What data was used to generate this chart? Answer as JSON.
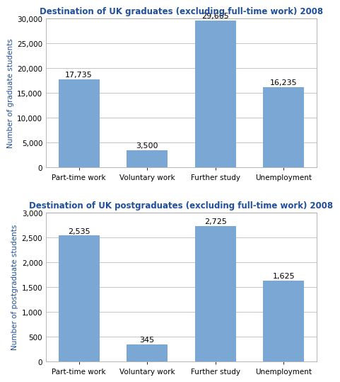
{
  "chart1": {
    "title": "Destination of UK graduates (excluding full-time work) 2008",
    "categories": [
      "Part-time work",
      "Voluntary work",
      "Further study",
      "Unemployment"
    ],
    "values": [
      17735,
      3500,
      29665,
      16235
    ],
    "labels": [
      "17,735",
      "3,500",
      "29,665",
      "16,235"
    ],
    "ylabel": "Number of graduate students",
    "ylim": [
      0,
      30000
    ],
    "yticks": [
      0,
      5000,
      10000,
      15000,
      20000,
      25000,
      30000
    ],
    "ytick_labels": [
      "0",
      "5,000",
      "10,000",
      "15,000",
      "20,000",
      "25,000",
      "30,000"
    ]
  },
  "chart2": {
    "title": "Destination of UK postgraduates (excluding full-time work) 2008",
    "categories": [
      "Part-time work",
      "Voluntary work",
      "Further study",
      "Unemployment"
    ],
    "values": [
      2535,
      345,
      2725,
      1625
    ],
    "labels": [
      "2,535",
      "345",
      "2,725",
      "1,625"
    ],
    "ylabel": "Number of postgraduate students",
    "ylim": [
      0,
      3000
    ],
    "yticks": [
      0,
      500,
      1000,
      1500,
      2000,
      2500,
      3000
    ],
    "ytick_labels": [
      "0",
      "500",
      "1,000",
      "1,500",
      "2,000",
      "2,500",
      "3,000"
    ]
  },
  "bar_color": "#7ba7d4",
  "bar_edge_color": "none",
  "title_color": "#1f4e9e",
  "ylabel_color": "#1f4e9e",
  "background_color": "#ffffff",
  "grid_color": "#bbbbbb",
  "title_fontsize": 8.5,
  "label_fontsize": 8.0,
  "ylabel_fontsize": 7.5,
  "tick_fontsize": 7.5,
  "bar_width": 0.6
}
